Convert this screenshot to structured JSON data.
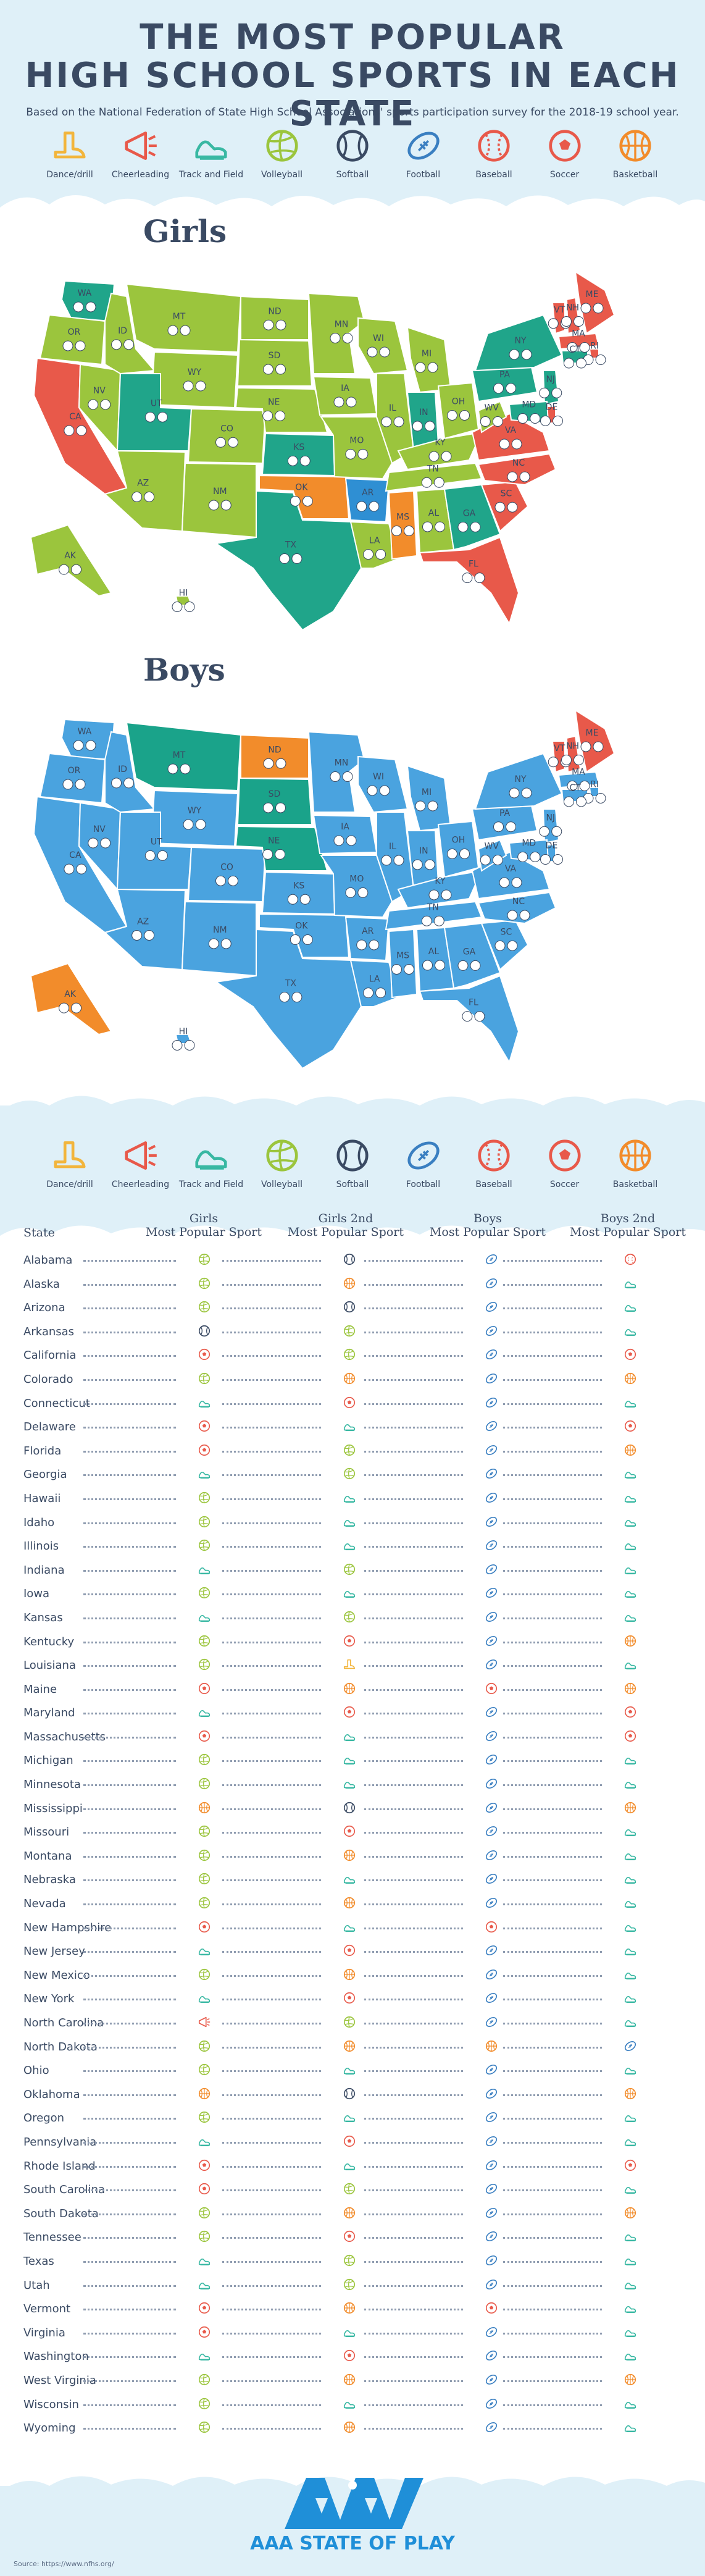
{
  "header": {
    "title_line1": "THE MOST POPULAR",
    "title_line2": "HIGH SCHOOL SPORTS IN EACH STATE",
    "subtitle": "Based on the National Federation of State High School Associations' sports participation survey for the 2018-19 school year."
  },
  "sports": [
    {
      "label": "Dance/drill",
      "icon": "boot-icon",
      "color": "#f2b53c"
    },
    {
      "label": "Cheerleading",
      "icon": "megaphone-icon",
      "color": "#e8594a"
    },
    {
      "label": "Track and Field",
      "icon": "shoe-icon",
      "color": "#39b8a3"
    },
    {
      "label": "Volleyball",
      "icon": "volleyball-icon",
      "color": "#9bc53d"
    },
    {
      "label": "Softball",
      "icon": "softball-icon",
      "color": "#3a4a63"
    },
    {
      "label": "Football",
      "icon": "football-icon",
      "color": "#3a7fc1"
    },
    {
      "label": "Baseball",
      "icon": "baseball-icon",
      "color": "#e8594a"
    },
    {
      "label": "Soccer",
      "icon": "soccer-icon",
      "color": "#e8594a"
    },
    {
      "label": "Basketball",
      "icon": "basketball-icon",
      "color": "#f28c2b"
    }
  ],
  "sections": {
    "girls": "Girls",
    "boys": "Boys"
  },
  "map_labels": {
    "girls": [
      "WA",
      "OR",
      "CA",
      "NV",
      "ID",
      "MT",
      "WY",
      "UT",
      "AZ",
      "CO",
      "NM",
      "ND",
      "SD",
      "NE",
      "KS",
      "OK",
      "TX",
      "MN",
      "IA",
      "MO",
      "AR",
      "LA",
      "WI",
      "IL",
      "MI",
      "IN",
      "OH",
      "KY",
      "TN",
      "MS",
      "AL",
      "GA",
      "FL",
      "SC",
      "NC",
      "VA",
      "WV",
      "PA",
      "NY",
      "VT",
      "NH",
      "ME",
      "MA",
      "RI",
      "CT",
      "NJ",
      "DE",
      "MD",
      "AK",
      "HI"
    ],
    "boys": [
      "WA",
      "OR",
      "CA",
      "NV",
      "ID",
      "MT",
      "WY",
      "UT",
      "AZ",
      "CO",
      "NM",
      "ND",
      "SD",
      "NE",
      "KS",
      "OK",
      "TX",
      "MN",
      "IA",
      "MO",
      "AR",
      "LA",
      "WI",
      "IL",
      "MI",
      "IN",
      "OH",
      "KY",
      "TN",
      "MS",
      "AL",
      "GA",
      "FL",
      "SC",
      "NC",
      "VA",
      "WV",
      "PA",
      "NY",
      "VT",
      "NH",
      "ME",
      "MA",
      "RI",
      "CT",
      "NJ",
      "DE",
      "MD",
      "AK",
      "HI"
    ]
  },
  "table": {
    "col_state": "State",
    "col_girls1": [
      "Girls",
      "Most Popular Sport"
    ],
    "col_girls2": [
      "Girls 2nd",
      "Most Popular Sport"
    ],
    "col_boys1": [
      "Boys",
      "Most Popular Sport"
    ],
    "col_boys2": [
      "Boys 2nd",
      "Most Popular Sport"
    ],
    "rows": [
      {
        "state": "Alabama",
        "g1": "volleyball",
        "g2": "softball",
        "b1": "football",
        "b2": "baseball"
      },
      {
        "state": "Alaska",
        "g1": "volleyball",
        "g2": "basketball",
        "b1": "football",
        "b2": "track"
      },
      {
        "state": "Arizona",
        "g1": "volleyball",
        "g2": "softball",
        "b1": "football",
        "b2": "track"
      },
      {
        "state": "Arkansas",
        "g1": "softball",
        "g2": "volleyball",
        "b1": "football",
        "b2": "track"
      },
      {
        "state": "California",
        "g1": "soccer",
        "g2": "volleyball",
        "b1": "football",
        "b2": "soccer"
      },
      {
        "state": "Colorado",
        "g1": "volleyball",
        "g2": "basketball",
        "b1": "football",
        "b2": "basketball"
      },
      {
        "state": "Connecticut",
        "g1": "track",
        "g2": "soccer",
        "b1": "football",
        "b2": "track"
      },
      {
        "state": "Delaware",
        "g1": "soccer",
        "g2": "track",
        "b1": "football",
        "b2": "soccer"
      },
      {
        "state": "Florida",
        "g1": "soccer",
        "g2": "volleyball",
        "b1": "football",
        "b2": "basketball"
      },
      {
        "state": "Georgia",
        "g1": "track",
        "g2": "volleyball",
        "b1": "football",
        "b2": "track"
      },
      {
        "state": "Hawaii",
        "g1": "volleyball",
        "g2": "track",
        "b1": "football",
        "b2": "track"
      },
      {
        "state": "Idaho",
        "g1": "volleyball",
        "g2": "track",
        "b1": "football",
        "b2": "track"
      },
      {
        "state": "Illinois",
        "g1": "volleyball",
        "g2": "track",
        "b1": "football",
        "b2": "track"
      },
      {
        "state": "Indiana",
        "g1": "track",
        "g2": "volleyball",
        "b1": "football",
        "b2": "track"
      },
      {
        "state": "Iowa",
        "g1": "volleyball",
        "g2": "track",
        "b1": "football",
        "b2": "track"
      },
      {
        "state": "Kansas",
        "g1": "track",
        "g2": "volleyball",
        "b1": "football",
        "b2": "track"
      },
      {
        "state": "Kentucky",
        "g1": "volleyball",
        "g2": "soccer",
        "b1": "football",
        "b2": "basketball"
      },
      {
        "state": "Louisiana",
        "g1": "volleyball",
        "g2": "dance",
        "b1": "football",
        "b2": "track"
      },
      {
        "state": "Maine",
        "g1": "soccer",
        "g2": "basketball",
        "b1": "soccer",
        "b2": "basketball"
      },
      {
        "state": "Maryland",
        "g1": "track",
        "g2": "soccer",
        "b1": "football",
        "b2": "soccer"
      },
      {
        "state": "Massachusetts",
        "g1": "soccer",
        "g2": "track",
        "b1": "football",
        "b2": "soccer"
      },
      {
        "state": "Michigan",
        "g1": "volleyball",
        "g2": "track",
        "b1": "football",
        "b2": "track"
      },
      {
        "state": "Minnesota",
        "g1": "volleyball",
        "g2": "track",
        "b1": "football",
        "b2": "track"
      },
      {
        "state": "Mississippi",
        "g1": "basketball",
        "g2": "softball",
        "b1": "football",
        "b2": "basketball"
      },
      {
        "state": "Missouri",
        "g1": "volleyball",
        "g2": "soccer",
        "b1": "football",
        "b2": "track"
      },
      {
        "state": "Montana",
        "g1": "volleyball",
        "g2": "basketball",
        "b1": "football",
        "b2": "track"
      },
      {
        "state": "Nebraska",
        "g1": "volleyball",
        "g2": "track",
        "b1": "football",
        "b2": "track"
      },
      {
        "state": "Nevada",
        "g1": "volleyball",
        "g2": "basketball",
        "b1": "football",
        "b2": "track"
      },
      {
        "state": "New Hampshire",
        "g1": "soccer",
        "g2": "track",
        "b1": "soccer",
        "b2": "track"
      },
      {
        "state": "New Jersey",
        "g1": "track",
        "g2": "soccer",
        "b1": "football",
        "b2": "track"
      },
      {
        "state": "New Mexico",
        "g1": "volleyball",
        "g2": "basketball",
        "b1": "football",
        "b2": "track"
      },
      {
        "state": "New York",
        "g1": "track",
        "g2": "soccer",
        "b1": "football",
        "b2": "track"
      },
      {
        "state": "North Carolina",
        "g1": "cheer",
        "g2": "volleyball",
        "b1": "football",
        "b2": "track"
      },
      {
        "state": "North Dakota",
        "g1": "volleyball",
        "g2": "basketball",
        "b1": "basketball",
        "b2": "football"
      },
      {
        "state": "Ohio",
        "g1": "volleyball",
        "g2": "track",
        "b1": "football",
        "b2": "track"
      },
      {
        "state": "Oklahoma",
        "g1": "basketball",
        "g2": "softball",
        "b1": "football",
        "b2": "basketball"
      },
      {
        "state": "Oregon",
        "g1": "volleyball",
        "g2": "track",
        "b1": "football",
        "b2": "track"
      },
      {
        "state": "Pennsylvania",
        "g1": "track",
        "g2": "soccer",
        "b1": "football",
        "b2": "track"
      },
      {
        "state": "Rhode Island",
        "g1": "soccer",
        "g2": "track",
        "b1": "football",
        "b2": "soccer"
      },
      {
        "state": "South Carolina",
        "g1": "soccer",
        "g2": "volleyball",
        "b1": "football",
        "b2": "track"
      },
      {
        "state": "South Dakota",
        "g1": "volleyball",
        "g2": "basketball",
        "b1": "football",
        "b2": "basketball"
      },
      {
        "state": "Tennessee",
        "g1": "volleyball",
        "g2": "soccer",
        "b1": "football",
        "b2": "track"
      },
      {
        "state": "Texas",
        "g1": "track",
        "g2": "volleyball",
        "b1": "football",
        "b2": "track"
      },
      {
        "state": "Utah",
        "g1": "track",
        "g2": "volleyball",
        "b1": "football",
        "b2": "track"
      },
      {
        "state": "Vermont",
        "g1": "soccer",
        "g2": "basketball",
        "b1": "soccer",
        "b2": "track"
      },
      {
        "state": "Virginia",
        "g1": "soccer",
        "g2": "track",
        "b1": "football",
        "b2": "track"
      },
      {
        "state": "Washington",
        "g1": "track",
        "g2": "soccer",
        "b1": "football",
        "b2": "track"
      },
      {
        "state": "West Virginia",
        "g1": "volleyball",
        "g2": "basketball",
        "b1": "football",
        "b2": "basketball"
      },
      {
        "state": "Wisconsin",
        "g1": "volleyball",
        "g2": "track",
        "b1": "football",
        "b2": "track"
      },
      {
        "state": "Wyoming",
        "g1": "volleyball",
        "g2": "basketball",
        "b1": "football",
        "b2": "track"
      }
    ]
  },
  "footer": {
    "logo_text": "AAA STATE OF PLAY",
    "source": "Source: https://www.nfhs.org/"
  },
  "colors": {
    "navy": "#3a4a63",
    "light_blue": "#dff0f8",
    "green": "#9bc53d",
    "teal": "#20a58a",
    "red": "#e8594a",
    "orange": "#f28c2b",
    "blue": "#2f8fd3",
    "boys_blue": "#4aa3df",
    "boys_teal": "#1aa38a",
    "boys_orange": "#f28c2b"
  }
}
